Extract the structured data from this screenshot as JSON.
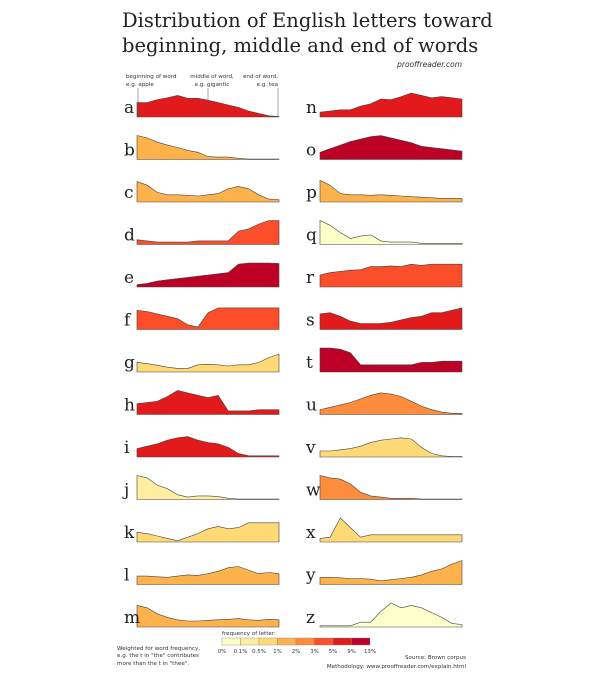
{
  "title": {
    "line1": "Distribution of English letters toward",
    "line2": "beginning, middle and end of words"
  },
  "site": "prooffreader.com",
  "annotations": {
    "beginning": {
      "line1": "beginning of word",
      "line2": "e.g. apple"
    },
    "middle": {
      "line1": "middle of word,",
      "line2": "e.g. gigantic"
    },
    "end": {
      "line1": "end of word,",
      "line2": "e.g. tea"
    }
  },
  "legend": {
    "title": "frequency of letter:",
    "labels": [
      "0%",
      "0.1%",
      "0.5%",
      "1%",
      "2%",
      "3%",
      "5%",
      "9%",
      "13%"
    ],
    "colors": [
      "#ffffcc",
      "#ffeda0",
      "#fed976",
      "#feb24c",
      "#fd8d3c",
      "#fc4e2a",
      "#e31a1c",
      "#bd0026"
    ]
  },
  "notes": {
    "weighting": [
      "Weighted for word frequency,",
      "e.g. the t in \"the\" contributes",
      "more than the t in \"thee\"."
    ],
    "source": "Source: Brown corpus",
    "methodology": "Methodology: www.prooffreader.com/explain.html"
  },
  "chart_data": {
    "type": "area",
    "x_positions": 15,
    "letters": [
      {
        "letter": "a",
        "color": "#e31a1c",
        "values": [
          0.6,
          0.6,
          0.72,
          0.8,
          0.9,
          0.78,
          0.78,
          0.7,
          0.6,
          0.5,
          0.4,
          0.25,
          0.15,
          0.05,
          0.02
        ]
      },
      {
        "letter": "b",
        "color": "#feb24c",
        "values": [
          1.0,
          0.9,
          0.72,
          0.6,
          0.5,
          0.38,
          0.3,
          0.12,
          0.1,
          0.1,
          0.05,
          0.02,
          0.02,
          0.02,
          0.02
        ]
      },
      {
        "letter": "c",
        "color": "#feb24c",
        "values": [
          0.85,
          0.7,
          0.4,
          0.3,
          0.3,
          0.28,
          0.25,
          0.3,
          0.35,
          0.55,
          0.65,
          0.55,
          0.3,
          0.12,
          0.1
        ]
      },
      {
        "letter": "d",
        "color": "#fc4e2a",
        "values": [
          0.2,
          0.15,
          0.1,
          0.1,
          0.1,
          0.1,
          0.15,
          0.15,
          0.15,
          0.15,
          0.55,
          0.65,
          0.85,
          1.0,
          1.0
        ]
      },
      {
        "letter": "e",
        "color": "#bd0026",
        "values": [
          0.1,
          0.15,
          0.25,
          0.3,
          0.35,
          0.4,
          0.45,
          0.5,
          0.55,
          0.6,
          0.95,
          1.0,
          1.0,
          1.0,
          0.98
        ]
      },
      {
        "letter": "f",
        "color": "#fc4e2a",
        "values": [
          0.8,
          0.75,
          0.65,
          0.55,
          0.45,
          0.2,
          0.1,
          0.7,
          0.9,
          0.9,
          0.9,
          0.9,
          0.9,
          0.9,
          0.9
        ]
      },
      {
        "letter": "g",
        "color": "#fed976",
        "values": [
          0.4,
          0.35,
          0.28,
          0.2,
          0.15,
          0.15,
          0.3,
          0.32,
          0.3,
          0.25,
          0.3,
          0.3,
          0.4,
          0.6,
          0.75
        ]
      },
      {
        "letter": "h",
        "color": "#e31a1c",
        "values": [
          0.45,
          0.5,
          0.55,
          0.75,
          1.0,
          0.9,
          0.8,
          0.7,
          0.8,
          0.15,
          0.15,
          0.15,
          0.2,
          0.2,
          0.2
        ]
      },
      {
        "letter": "i",
        "color": "#e31a1c",
        "values": [
          0.35,
          0.45,
          0.55,
          0.7,
          0.8,
          0.85,
          0.7,
          0.6,
          0.55,
          0.4,
          0.15,
          0.05,
          0.05,
          0.05,
          0.05
        ]
      },
      {
        "letter": "j",
        "color": "#ffeda0",
        "values": [
          1.0,
          0.9,
          0.6,
          0.45,
          0.2,
          0.1,
          0.15,
          0.15,
          0.12,
          0.05,
          0.02,
          0.02,
          0.02,
          0.02,
          0.02
        ]
      },
      {
        "letter": "k",
        "color": "#fed976",
        "values": [
          0.4,
          0.35,
          0.25,
          0.15,
          0.05,
          0.2,
          0.35,
          0.55,
          0.65,
          0.55,
          0.6,
          0.8,
          0.8,
          0.8,
          0.8
        ]
      },
      {
        "letter": "l",
        "color": "#feb24c",
        "values": [
          0.35,
          0.35,
          0.32,
          0.3,
          0.35,
          0.4,
          0.38,
          0.45,
          0.55,
          0.7,
          0.75,
          0.6,
          0.45,
          0.5,
          0.45
        ]
      },
      {
        "letter": "m",
        "color": "#feb24c",
        "values": [
          0.9,
          0.8,
          0.55,
          0.4,
          0.3,
          0.25,
          0.25,
          0.28,
          0.3,
          0.32,
          0.35,
          0.3,
          0.28,
          0.32,
          0.3
        ]
      },
      {
        "letter": "n",
        "color": "#e31a1c",
        "values": [
          0.2,
          0.25,
          0.3,
          0.3,
          0.45,
          0.55,
          0.75,
          0.72,
          0.85,
          1.0,
          0.9,
          0.8,
          0.85,
          0.8,
          0.75
        ]
      },
      {
        "letter": "o",
        "color": "#bd0026",
        "values": [
          0.3,
          0.45,
          0.6,
          0.75,
          0.85,
          0.95,
          1.0,
          0.9,
          0.8,
          0.7,
          0.55,
          0.5,
          0.45,
          0.4,
          0.35
        ]
      },
      {
        "letter": "p",
        "color": "#feb24c",
        "values": [
          0.9,
          0.7,
          0.35,
          0.3,
          0.3,
          0.28,
          0.3,
          0.28,
          0.25,
          0.22,
          0.2,
          0.18,
          0.15,
          0.15,
          0.15
        ]
      },
      {
        "letter": "q",
        "color": "#ffffcc",
        "values": [
          1.0,
          0.8,
          0.5,
          0.25,
          0.35,
          0.4,
          0.15,
          0.1,
          0.1,
          0.1,
          0.05,
          0.05,
          0.05,
          0.05,
          0.05
        ]
      },
      {
        "letter": "r",
        "color": "#fc4e2a",
        "values": [
          0.5,
          0.6,
          0.65,
          0.7,
          0.72,
          0.85,
          0.85,
          0.88,
          0.85,
          0.95,
          0.9,
          0.95,
          0.95,
          0.95,
          0.95
        ]
      },
      {
        "letter": "s",
        "color": "#e31a1c",
        "values": [
          0.65,
          0.7,
          0.55,
          0.35,
          0.25,
          0.25,
          0.25,
          0.3,
          0.4,
          0.5,
          0.55,
          0.7,
          0.7,
          0.8,
          0.9
        ]
      },
      {
        "letter": "t",
        "color": "#bd0026",
        "values": [
          1.0,
          1.0,
          0.95,
          0.8,
          0.3,
          0.3,
          0.3,
          0.3,
          0.3,
          0.3,
          0.4,
          0.4,
          0.45,
          0.45,
          0.45
        ]
      },
      {
        "letter": "u",
        "color": "#fd8d3c",
        "values": [
          0.2,
          0.3,
          0.4,
          0.5,
          0.65,
          0.8,
          0.9,
          0.85,
          0.75,
          0.55,
          0.35,
          0.2,
          0.1,
          0.05,
          0.05
        ]
      },
      {
        "letter": "v",
        "color": "#fed976",
        "values": [
          0.25,
          0.25,
          0.3,
          0.35,
          0.45,
          0.6,
          0.7,
          0.75,
          0.8,
          0.75,
          0.4,
          0.15,
          0.05,
          0.02,
          0.02
        ]
      },
      {
        "letter": "w",
        "color": "#fd8d3c",
        "values": [
          1.0,
          0.9,
          0.85,
          0.65,
          0.3,
          0.15,
          0.1,
          0.05,
          0.05,
          0.05,
          0.02,
          0.02,
          0.02,
          0.02,
          0.02
        ]
      },
      {
        "letter": "x",
        "color": "#fed976",
        "values": [
          0.15,
          0.2,
          1.0,
          0.6,
          0.2,
          0.3,
          0.3,
          0.3,
          0.3,
          0.3,
          0.3,
          0.3,
          0.3,
          0.3,
          0.3
        ]
      },
      {
        "letter": "y",
        "color": "#feb24c",
        "values": [
          0.3,
          0.3,
          0.28,
          0.25,
          0.25,
          0.22,
          0.15,
          0.2,
          0.25,
          0.3,
          0.4,
          0.55,
          0.65,
          0.85,
          1.0
        ]
      },
      {
        "letter": "z",
        "color": "#ffffcc",
        "values": [
          0.05,
          0.05,
          0.05,
          0.05,
          0.2,
          0.2,
          0.65,
          1.0,
          0.8,
          0.9,
          0.8,
          0.6,
          0.4,
          0.15,
          0.1
        ]
      }
    ]
  }
}
